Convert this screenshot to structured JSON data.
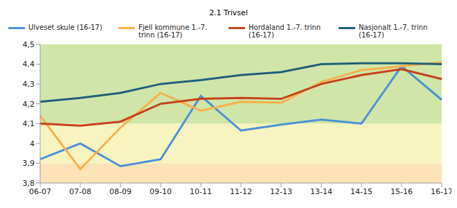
{
  "chart_data": {
    "type": "line",
    "title": "2.1 Trivsel",
    "categories": [
      "06-07",
      "07-08",
      "08-09",
      "09-10",
      "10-11",
      "11-12",
      "12-13",
      "13-14",
      "14-15",
      "15-16",
      "16-17"
    ],
    "series": [
      {
        "name": "Ulveset skule (16-17)",
        "color": "#4a90d9",
        "values": [
          3.92,
          4.0,
          3.885,
          3.92,
          4.24,
          4.065,
          4.095,
          4.12,
          4.1,
          4.39,
          4.22
        ]
      },
      {
        "name": "Fjell kommune 1.-7. trinn (16-17)",
        "color": "#f7b04a",
        "values": [
          4.14,
          3.87,
          4.08,
          4.255,
          4.165,
          4.21,
          4.205,
          4.31,
          4.37,
          4.39,
          4.41
        ]
      },
      {
        "name": "Hordaland 1.-7. trinn (16-17)",
        "color": "#c8401a",
        "values": [
          4.1,
          4.09,
          4.11,
          4.2,
          4.225,
          4.23,
          4.225,
          4.3,
          4.345,
          4.375,
          4.325
        ]
      },
      {
        "name": "Nasjonalt 1.-7. trinn (16-17)",
        "color": "#1e5f7a",
        "values": [
          4.21,
          4.23,
          4.255,
          4.3,
          4.32,
          4.345,
          4.36,
          4.4,
          4.405,
          4.405,
          4.4
        ]
      }
    ],
    "ylim": [
      3.8,
      4.5
    ],
    "yticks": [
      {
        "value": 3.8,
        "label": "3,8"
      },
      {
        "value": 3.9,
        "label": "3,9"
      },
      4,
      {
        "value": 4.1,
        "label": "4,1"
      },
      {
        "value": 4.2,
        "label": "4,2"
      },
      {
        "value": 4.3,
        "label": "4,3"
      },
      {
        "value": 4.4,
        "label": "4,4"
      },
      {
        "value": 4.5,
        "label": "4,5"
      }
    ],
    "bands": [
      {
        "from": 3.8,
        "to": 3.9,
        "color": "#fce4b8"
      },
      {
        "from": 3.9,
        "to": 4.1,
        "color": "#f8f4c0"
      },
      {
        "from": 4.1,
        "to": 4.5,
        "color": "#cfe6a8"
      }
    ],
    "grid": false,
    "legend": "top",
    "marker": "none",
    "line_style": "solid"
  }
}
